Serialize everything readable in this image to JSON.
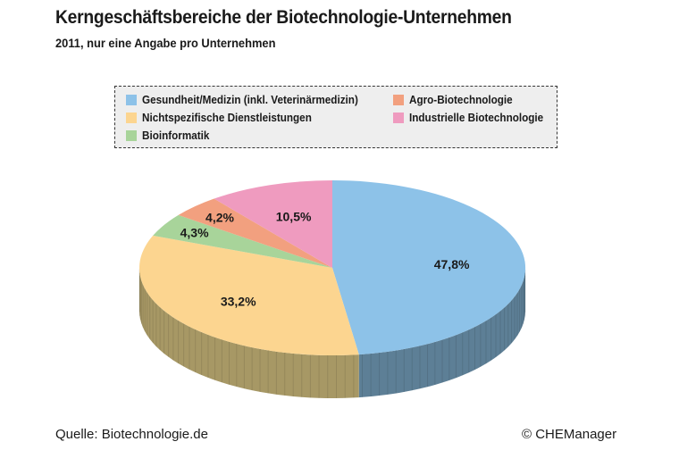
{
  "header": {
    "title": "Kerngeschäftsbereiche der Biotechnologie-Unternehmen",
    "subtitle": "2011, nur eine Angabe pro Unternehmen"
  },
  "chart_data": {
    "type": "pie",
    "title": "Kerngeschäftsbereiche der Biotechnologie-Unternehmen",
    "subtitle": "2011, nur eine Angabe pro Unternehmen",
    "legend_position": "top",
    "slices": [
      {
        "name": "Gesundheit/Medizin (inkl. Veterinärmedizin)",
        "value": 47.8,
        "label": "47,8%",
        "color": "#8dc2e8",
        "side_color": "#5d7f96"
      },
      {
        "name": "Nichtspezifische Dienstleistungen",
        "value": 33.2,
        "label": "33,2%",
        "color": "#fcd590",
        "side_color": "#a79865"
      },
      {
        "name": "Bioinformatik",
        "value": 4.3,
        "label": "4,3%",
        "color": "#a8d49a",
        "side_color": "#76956b"
      },
      {
        "name": "Agro-Biotechnologie",
        "value": 4.2,
        "label": "4,2%",
        "color": "#f2a07f",
        "side_color": "#a86f58"
      },
      {
        "name": "Industrielle Biotechnologie",
        "value": 10.5,
        "label": "10,5%",
        "color": "#ef9bbf",
        "side_color": "#a56c85"
      }
    ]
  },
  "footer": {
    "source": "Quelle: Biotechnologie.de",
    "copyright": "© CHEManager"
  }
}
